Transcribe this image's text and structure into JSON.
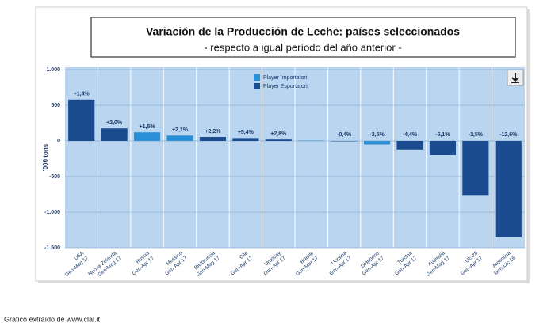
{
  "chart_data": {
    "type": "bar",
    "title": "Variación de la Producción de Leche: países seleccionados",
    "subtitle": "- respecto a igual período del año anterior -",
    "y_label": "'000 tons",
    "caption": "Gráfico extraído de www.clal.it",
    "categories": [
      "USA",
      "Nuova Zelanda",
      "Russia",
      "Messico",
      "Bielorussia",
      "Cile",
      "Uruguay",
      "Brasile",
      "Ucraina",
      "Giappone",
      "Turchia",
      "Australia",
      "UE-28",
      "Argentina"
    ],
    "periods": [
      "Gen-Mag 17",
      "Gen-Mag 17",
      "Gen-Apr 17",
      "Gen-Apr 17",
      "Gen-Mag 17",
      "Gen-Apr 17",
      "Gen-Apr 17",
      "Gen-Mar 17",
      "Gen-Apr 17",
      "Gen-Apr 17",
      "Gen-Apr 17",
      "Gen-Mag 17",
      "Gen-Apr 17",
      "Gen-Dic 16"
    ],
    "values": [
      580,
      175,
      120,
      75,
      55,
      40,
      20,
      5,
      -5,
      -50,
      -120,
      -200,
      -770,
      -1350
    ],
    "change_labels": [
      "+1,4%",
      "+2,0%",
      "+1,5%",
      "+2,1%",
      "+2,2%",
      "+5,4%",
      "+2,8%",
      null,
      "-0,4%",
      "-2,5%",
      "-4,4%",
      "-6,1%",
      "-1,5%",
      "-12,6%"
    ],
    "bar_groups": [
      1,
      1,
      0,
      0,
      1,
      1,
      1,
      0,
      1,
      0,
      1,
      1,
      1,
      1
    ],
    "legend": [
      {
        "name": "Player Importatori",
        "color": "#2a8fd4"
      },
      {
        "name": "Player Esportatori",
        "color": "#1b4b8f"
      }
    ],
    "ylim": [
      -1500,
      1000
    ],
    "yticks": [
      {
        "value": 1000,
        "label": "1.000"
      },
      500,
      0,
      -500,
      {
        "value": -1000,
        "label": "-1.000"
      },
      {
        "value": -1500,
        "label": "-1.500"
      }
    ],
    "grid": true
  }
}
